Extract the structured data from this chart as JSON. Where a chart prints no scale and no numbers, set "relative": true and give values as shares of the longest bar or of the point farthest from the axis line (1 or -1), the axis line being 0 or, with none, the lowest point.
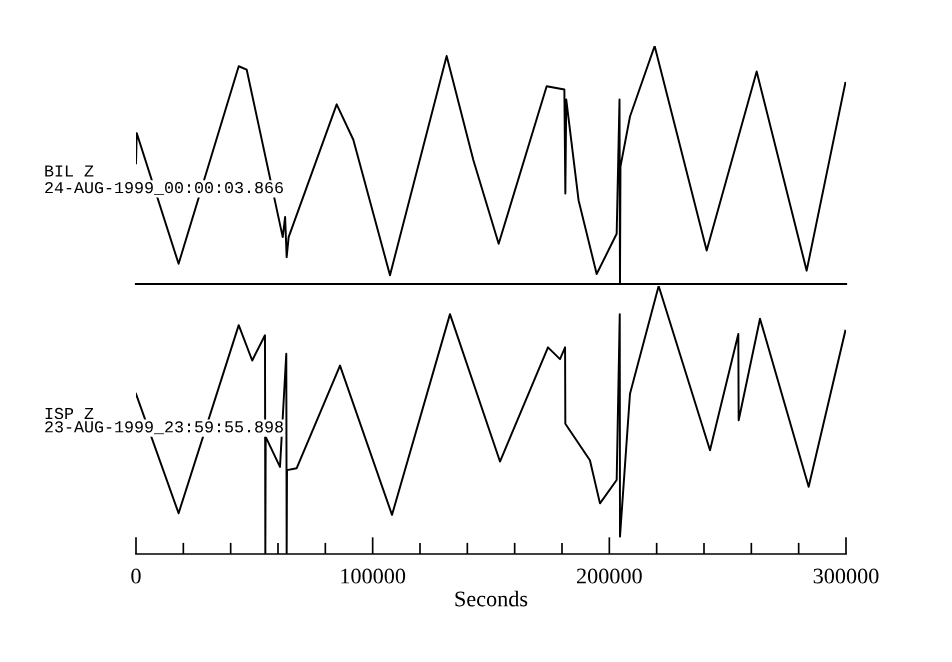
{
  "chart_data": [
    {
      "type": "line",
      "relative": true,
      "xlim": [
        0,
        300000
      ],
      "annotations": [
        "24-AUG-1999_00:00:03.866"
      ],
      "x": [
        0,
        300,
        18000,
        43400,
        46760,
        62000,
        63000,
        63660,
        64500,
        84790,
        91830,
        107320,
        131260,
        142530,
        153240,
        173520,
        181000,
        181410,
        181800,
        187000,
        194650,
        203100,
        204300,
        204500,
        204700,
        208730,
        219150,
        241130,
        262250,
        283380,
        299720
      ],
      "series": [
        {
          "name": "BIL Z",
          "color": "#000000",
          "values": [
            0.507,
            0.634,
            0.085,
            0.915,
            0.901,
            0.197,
            0.282,
            0.113,
            0.197,
            0.755,
            0.606,
            0.037,
            0.958,
            0.521,
            0.169,
            0.831,
            0.817,
            0.38,
            0.775,
            0.352,
            0.042,
            0.211,
            0.775,
            0,
            0.493,
            0.704,
            1,
            0.141,
            0.893,
            0.056,
            0.845
          ]
        }
      ]
    },
    {
      "type": "line",
      "relative": true,
      "xlim": [
        0,
        300000
      ],
      "xlabel": "Seconds",
      "annotations": [
        "23-AUG-1999_23:59:55.898"
      ],
      "xticks": [
        0,
        {
          "value": 20000,
          "label": null
        },
        {
          "value": 40000,
          "label": null
        },
        {
          "value": 60000,
          "label": null
        },
        {
          "value": 80000,
          "label": null
        },
        100000,
        {
          "value": 120000,
          "label": null
        },
        {
          "value": 140000,
          "label": null
        },
        {
          "value": 160000,
          "label": null
        },
        {
          "value": 180000,
          "label": null
        },
        200000,
        {
          "value": 220000,
          "label": null
        },
        {
          "value": 240000,
          "label": null
        },
        {
          "value": 260000,
          "label": null
        },
        {
          "value": 280000,
          "label": null
        },
        300000
      ],
      "x": [
        0,
        18000,
        43400,
        49100,
        54500,
        54650,
        54800,
        60840,
        63500,
        63660,
        63800,
        67900,
        86200,
        108170,
        132670,
        153800,
        174080,
        179150,
        181300,
        181410,
        191800,
        196050,
        203100,
        204400,
        204500,
        208730,
        220840,
        242530,
        254500,
        254650,
        263660,
        284220,
        299720
      ],
      "series": [
        {
          "name": "ISP Z",
          "color": "#000000",
          "values": [
            0.598,
            0.152,
            0.854,
            0.722,
            0.816,
            0,
            0.437,
            0.325,
            0.747,
            0,
            0.313,
            0.32,
            0.703,
            0.146,
            0.895,
            0.345,
            0.771,
            0.727,
            0.771,
            0.486,
            0.35,
            0.189,
            0.276,
            0.895,
            0.065,
            0.598,
            1,
            0.387,
            0.821,
            0.499,
            0.878,
            0.251,
            0.833
          ]
        }
      ]
    }
  ]
}
